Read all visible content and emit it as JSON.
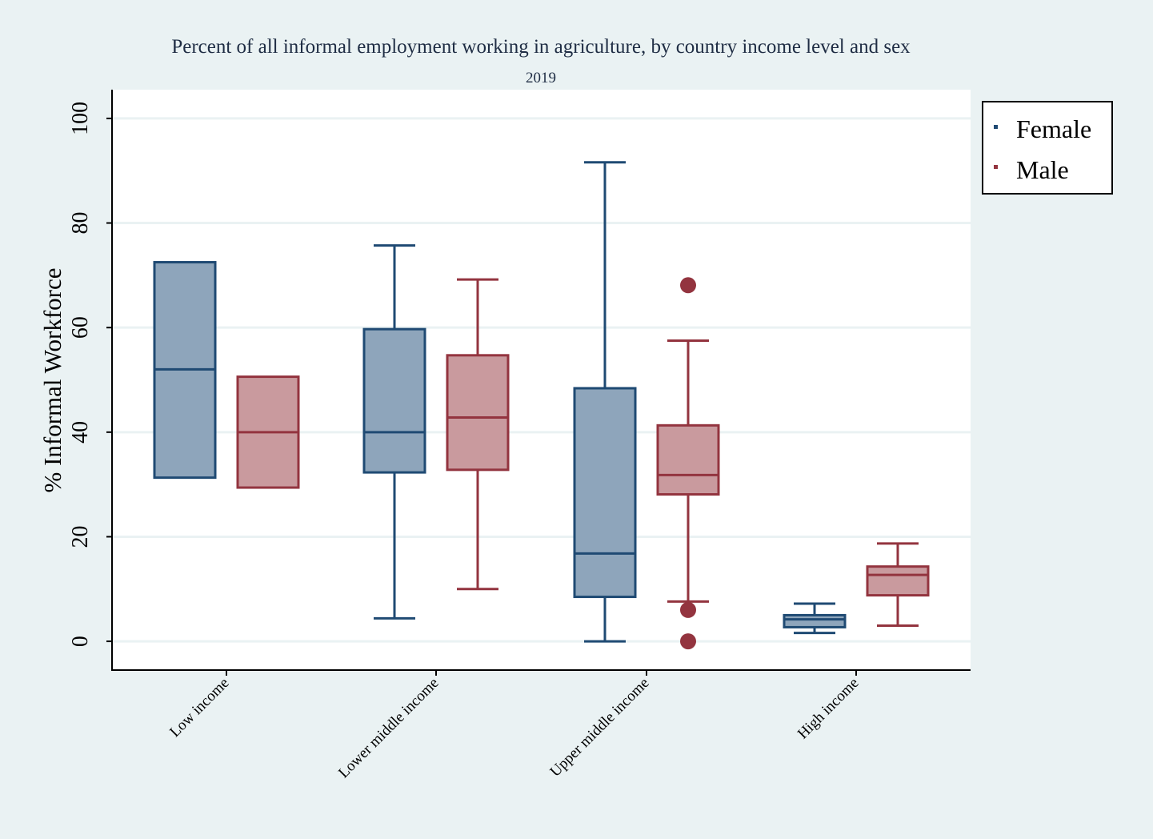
{
  "chart_data": {
    "type": "box",
    "title": "Percent of all informal employment working in agriculture, by country income level and sex",
    "subtitle": "2019",
    "xlabel": "",
    "ylabel": "% Informal Workforce",
    "ylim": [
      -5.5,
      105.5
    ],
    "yticks": [
      0,
      20,
      40,
      60,
      80,
      100
    ],
    "grid": true,
    "legend_position": "right",
    "categories": [
      "Low income",
      "Lower middle income",
      "Upper middle income",
      "High income"
    ],
    "colors": {
      "Female": {
        "fill": "#8ea5bb",
        "stroke": "#1f4a73"
      },
      "Male": {
        "fill": "#c99a9e",
        "stroke": "#93343f"
      }
    },
    "series": [
      {
        "name": "Female",
        "boxes": [
          {
            "whisker_low": 31.3,
            "q1": 31.3,
            "median": 52.0,
            "q3": 72.5,
            "whisker_high": 72.5,
            "outliers": []
          },
          {
            "whisker_low": 4.4,
            "q1": 32.3,
            "median": 40.0,
            "q3": 59.7,
            "whisker_high": 75.7,
            "outliers": []
          },
          {
            "whisker_low": 0.0,
            "q1": 8.5,
            "median": 16.8,
            "q3": 48.4,
            "whisker_high": 91.6,
            "outliers": []
          },
          {
            "whisker_low": 1.6,
            "q1": 2.7,
            "median": 4.2,
            "q3": 5.0,
            "whisker_high": 7.2,
            "outliers": []
          }
        ]
      },
      {
        "name": "Male",
        "boxes": [
          {
            "whisker_low": 29.4,
            "q1": 29.4,
            "median": 40.0,
            "q3": 50.6,
            "whisker_high": 50.6,
            "outliers": []
          },
          {
            "whisker_low": 10.0,
            "q1": 32.8,
            "median": 42.8,
            "q3": 54.7,
            "whisker_high": 69.2,
            "outliers": []
          },
          {
            "whisker_low": 7.6,
            "q1": 28.1,
            "median": 31.8,
            "q3": 41.3,
            "whisker_high": 57.5,
            "outliers": [
              68.1,
              6.0,
              0.0
            ]
          },
          {
            "whisker_low": 3.0,
            "q1": 8.8,
            "median": 12.7,
            "q3": 14.3,
            "whisker_high": 18.7,
            "outliers": []
          }
        ]
      }
    ]
  }
}
